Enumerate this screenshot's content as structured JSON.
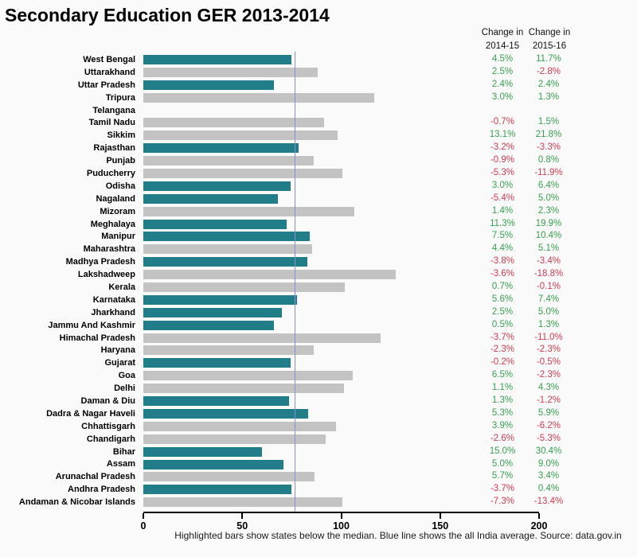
{
  "title": "Secondary Education GER 2013-2014",
  "columns": {
    "col1_line1": "Change in",
    "col1_line2": "2014-15",
    "col2_line1": "Change in",
    "col2_line2": "2015-16"
  },
  "caption": "Highlighted bars show states below the median. Blue line shows the all India average. Source: data.gov.in",
  "colors": {
    "highlight_bar": "#217e88",
    "normal_bar": "#c3c3c3",
    "positive_text": "#36a14f",
    "negative_text": "#d43a4f",
    "average_line": "#8a8ed6"
  },
  "chart_data": {
    "type": "bar",
    "orientation": "horizontal",
    "title": "Secondary Education GER 2013-2014",
    "xlabel": "",
    "ylabel": "",
    "xlim": [
      0,
      200
    ],
    "x_ticks": [
      0,
      50,
      100,
      150,
      200
    ],
    "grid": false,
    "average_line_value": 76.3,
    "average_line_label": "all India average",
    "highlight_meaning": "states below the median",
    "rows": [
      {
        "state": "West Bengal",
        "ger": 75,
        "change_2014_15": "4.5%",
        "change_2015_16": "11.7%",
        "below_median": true
      },
      {
        "state": "Uttarakhand",
        "ger": 88,
        "change_2014_15": "2.5%",
        "change_2015_16": "-2.8%",
        "below_median": false
      },
      {
        "state": "Uttar Pradesh",
        "ger": 66,
        "change_2014_15": "2.4%",
        "change_2015_16": "2.4%",
        "below_median": true
      },
      {
        "state": "Tripura",
        "ger": 116.5,
        "change_2014_15": "3.0%",
        "change_2015_16": "1.3%",
        "below_median": false
      },
      {
        "state": "Telangana",
        "ger": null,
        "change_2014_15": null,
        "change_2015_16": null,
        "below_median": false
      },
      {
        "state": "Tamil Nadu",
        "ger": 91.5,
        "change_2014_15": "-0.7%",
        "change_2015_16": "1.5%",
        "below_median": false
      },
      {
        "state": "Sikkim",
        "ger": 98,
        "change_2014_15": "13.1%",
        "change_2015_16": "21.8%",
        "below_median": false
      },
      {
        "state": "Rajasthan",
        "ger": 78.5,
        "change_2014_15": "-3.2%",
        "change_2015_16": "-3.3%",
        "below_median": true
      },
      {
        "state": "Punjab",
        "ger": 86,
        "change_2014_15": "-0.9%",
        "change_2015_16": "0.8%",
        "below_median": false
      },
      {
        "state": "Puducherry",
        "ger": 100.5,
        "change_2014_15": "-5.3%",
        "change_2015_16": "-11.9%",
        "below_median": false
      },
      {
        "state": "Odisha",
        "ger": 74.5,
        "change_2014_15": "3.0%",
        "change_2015_16": "6.4%",
        "below_median": true
      },
      {
        "state": "Nagaland",
        "ger": 68,
        "change_2014_15": "-5.4%",
        "change_2015_16": "5.0%",
        "below_median": true
      },
      {
        "state": "Mizoram",
        "ger": 106.5,
        "change_2014_15": "1.4%",
        "change_2015_16": "2.3%",
        "below_median": false
      },
      {
        "state": "Meghalaya",
        "ger": 72.5,
        "change_2014_15": "11.3%",
        "change_2015_16": "19.9%",
        "below_median": true
      },
      {
        "state": "Manipur",
        "ger": 84,
        "change_2014_15": "7.5%",
        "change_2015_16": "10.4%",
        "below_median": true
      },
      {
        "state": "Maharashtra",
        "ger": 85.5,
        "change_2014_15": "4.4%",
        "change_2015_16": "5.1%",
        "below_median": false
      },
      {
        "state": "Madhya Pradesh",
        "ger": 83,
        "change_2014_15": "-3.8%",
        "change_2015_16": "-3.4%",
        "below_median": true
      },
      {
        "state": "Lakshadweep",
        "ger": 127.5,
        "change_2014_15": "-3.6%",
        "change_2015_16": "-18.8%",
        "below_median": false
      },
      {
        "state": "Kerala",
        "ger": 102,
        "change_2014_15": "0.7%",
        "change_2015_16": "-0.1%",
        "below_median": false
      },
      {
        "state": "Karnataka",
        "ger": 77.5,
        "change_2014_15": "5.6%",
        "change_2015_16": "7.4%",
        "below_median": true
      },
      {
        "state": "Jharkhand",
        "ger": 70,
        "change_2014_15": "2.5%",
        "change_2015_16": "5.0%",
        "below_median": true
      },
      {
        "state": "Jammu And Kashmir",
        "ger": 66,
        "change_2014_15": "0.5%",
        "change_2015_16": "1.3%",
        "below_median": true
      },
      {
        "state": "Himachal Pradesh",
        "ger": 120,
        "change_2014_15": "-3.7%",
        "change_2015_16": "-11.0%",
        "below_median": false
      },
      {
        "state": "Haryana",
        "ger": 86,
        "change_2014_15": "-2.3%",
        "change_2015_16": "-2.3%",
        "below_median": false
      },
      {
        "state": "Gujarat",
        "ger": 74.5,
        "change_2014_15": "-0.2%",
        "change_2015_16": "-0.5%",
        "below_median": true
      },
      {
        "state": "Goa",
        "ger": 106,
        "change_2014_15": "6.5%",
        "change_2015_16": "-2.3%",
        "below_median": false
      },
      {
        "state": "Delhi",
        "ger": 101.5,
        "change_2014_15": "1.1%",
        "change_2015_16": "4.3%",
        "below_median": false
      },
      {
        "state": "Daman & Diu",
        "ger": 73.5,
        "change_2014_15": "1.3%",
        "change_2015_16": "-1.2%",
        "below_median": true
      },
      {
        "state": "Dadra & Nagar Haveli",
        "ger": 83.5,
        "change_2014_15": "5.3%",
        "change_2015_16": "5.9%",
        "below_median": true
      },
      {
        "state": "Chhattisgarh",
        "ger": 97.5,
        "change_2014_15": "3.9%",
        "change_2015_16": "-6.2%",
        "below_median": false
      },
      {
        "state": "Chandigarh",
        "ger": 92,
        "change_2014_15": "-2.6%",
        "change_2015_16": "-5.3%",
        "below_median": false
      },
      {
        "state": "Bihar",
        "ger": 60,
        "change_2014_15": "15.0%",
        "change_2015_16": "30.4%",
        "below_median": true
      },
      {
        "state": "Assam",
        "ger": 71,
        "change_2014_15": "5.0%",
        "change_2015_16": "9.0%",
        "below_median": true
      },
      {
        "state": "Arunachal Pradesh",
        "ger": 86.5,
        "change_2014_15": "5.7%",
        "change_2015_16": "3.4%",
        "below_median": false
      },
      {
        "state": "Andhra Pradesh",
        "ger": 75,
        "change_2014_15": "-3.7%",
        "change_2015_16": "0.4%",
        "below_median": true
      },
      {
        "state": "Andaman & Nicobar Islands",
        "ger": 100.5,
        "change_2014_15": "-7.3%",
        "change_2015_16": "-13.4%",
        "below_median": false
      }
    ]
  }
}
